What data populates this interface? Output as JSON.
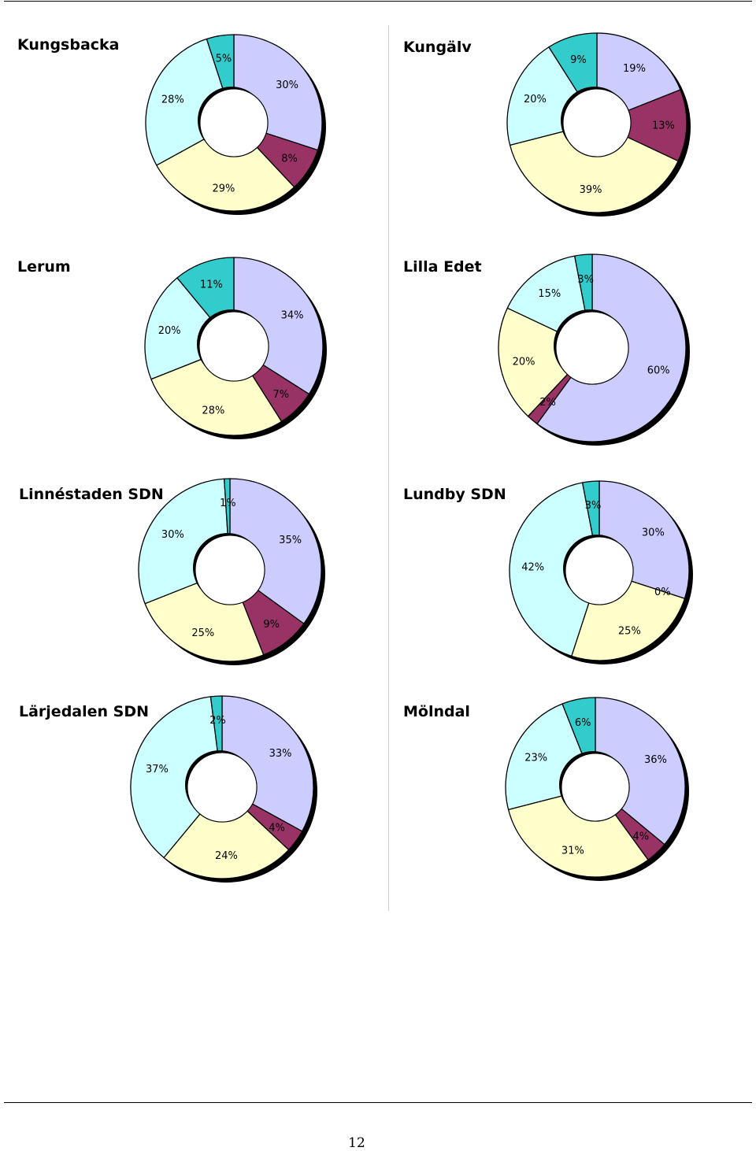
{
  "page": {
    "page_number": "12"
  },
  "chart_data": [
    {
      "type": "pie",
      "title": "Kungsbacka",
      "values": [
        30,
        8,
        29,
        28,
        5
      ],
      "labels": [
        "30%",
        "8%",
        "29%",
        "28%",
        "5%"
      ],
      "colors": [
        "#ccccff",
        "#993366",
        "#ffffcc",
        "#ccffff",
        "#33cccc"
      ]
    },
    {
      "type": "pie",
      "title": "Kungälv",
      "values": [
        19,
        13,
        39,
        20,
        9
      ],
      "labels": [
        "19%",
        "13%",
        "39%",
        "20%",
        "9%"
      ],
      "colors": [
        "#ccccff",
        "#993366",
        "#ffffcc",
        "#ccffff",
        "#33cccc"
      ]
    },
    {
      "type": "pie",
      "title": "Lerum",
      "values": [
        34,
        7,
        28,
        20,
        11
      ],
      "labels": [
        "34%",
        "7%",
        "28%",
        "20%",
        "11%"
      ],
      "colors": [
        "#ccccff",
        "#993366",
        "#ffffcc",
        "#ccffff",
        "#33cccc"
      ]
    },
    {
      "type": "pie",
      "title": "Lilla Edet",
      "values": [
        60,
        2,
        20,
        15,
        3
      ],
      "labels": [
        "60%",
        "2%",
        "20%",
        "15%",
        "3%"
      ],
      "colors": [
        "#ccccff",
        "#993366",
        "#ffffcc",
        "#ccffff",
        "#33cccc"
      ]
    },
    {
      "type": "pie",
      "title": "Linnéstaden SDN",
      "values": [
        35,
        9,
        25,
        30,
        1
      ],
      "labels": [
        "35%",
        "9%",
        "25%",
        "30%",
        "1%"
      ],
      "colors": [
        "#ccccff",
        "#993366",
        "#ffffcc",
        "#ccffff",
        "#33cccc"
      ]
    },
    {
      "type": "pie",
      "title": "Lundby SDN",
      "values": [
        30,
        0,
        25,
        42,
        3
      ],
      "labels": [
        "30%",
        "0%",
        "25%",
        "42%",
        "3%"
      ],
      "colors": [
        "#ccccff",
        "#993366",
        "#ffffcc",
        "#ccffff",
        "#33cccc"
      ]
    },
    {
      "type": "pie",
      "title": "Lärjedalen SDN",
      "values": [
        33,
        4,
        24,
        37,
        2
      ],
      "labels": [
        "33%",
        "4%",
        "24%",
        "37%",
        "2%"
      ],
      "colors": [
        "#ccccff",
        "#993366",
        "#ffffcc",
        "#ccffff",
        "#33cccc"
      ]
    },
    {
      "type": "pie",
      "title": "Mölndal",
      "values": [
        36,
        4,
        31,
        23,
        6
      ],
      "labels": [
        "36%",
        "4%",
        "31%",
        "23%",
        "6%"
      ],
      "colors": [
        "#ccccff",
        "#993366",
        "#ffffcc",
        "#ccffff",
        "#33cccc"
      ]
    }
  ]
}
